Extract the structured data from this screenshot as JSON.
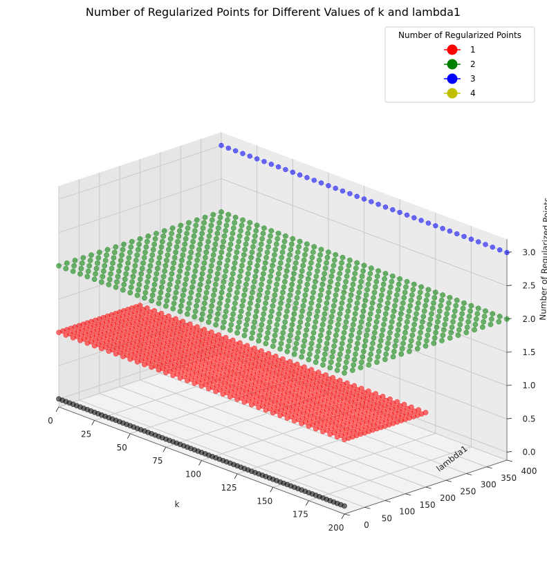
{
  "chart_data": {
    "type": "scatter",
    "title": "Number of Regularized Points for Different Values of k and lambda1",
    "xlabel": "k",
    "ylabel": "lambda1",
    "zlabel": "Number of Regularized Points",
    "xlim": [
      0,
      200
    ],
    "ylim": [
      0,
      400
    ],
    "zlim": [
      0,
      3
    ],
    "xticks": [
      "0",
      "25",
      "50",
      "75",
      "100",
      "125",
      "150",
      "175",
      "200"
    ],
    "yticks": [
      "0",
      "50",
      "100",
      "150",
      "200",
      "250",
      "300",
      "350",
      "400"
    ],
    "zticks": [
      "0.0",
      "0.5",
      "1.0",
      "1.5",
      "2.0",
      "2.5",
      "3.0"
    ],
    "grid": true,
    "legend": {
      "title": "Number of Regularized Points",
      "placement": "top-right",
      "entries": [
        {
          "label": "1",
          "color": "#ff0000"
        },
        {
          "label": "2",
          "color": "#008000"
        },
        {
          "label": "3",
          "color": "#0000ff"
        },
        {
          "label": "4",
          "color": "#bfbf00"
        }
      ]
    },
    "series": [
      {
        "z": 0,
        "color": "#000000",
        "lambda1_range": [
          0,
          0
        ],
        "k_range": [
          0,
          200
        ]
      },
      {
        "z": 1,
        "color": "#ff0000",
        "lambda1_range": [
          0,
          200
        ],
        "k_range": [
          0,
          200
        ]
      },
      {
        "z": 2,
        "color": "#008000",
        "lambda1_range": [
          0,
          400
        ],
        "k_range": [
          0,
          200
        ]
      },
      {
        "z": 3,
        "color": "#0000ff",
        "lambda1_range": [
          400,
          400
        ],
        "k_range": [
          0,
          200
        ]
      }
    ]
  }
}
